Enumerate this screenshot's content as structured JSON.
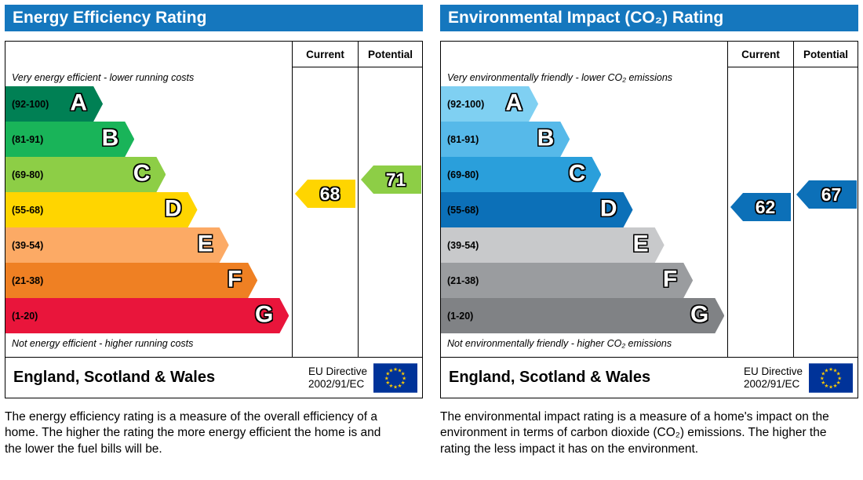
{
  "theme": {
    "header_color": "#1577be",
    "flag_bg": "#003399",
    "flag_star": "#ffcc00"
  },
  "panels": [
    {
      "title": "Energy Efficiency Rating",
      "col_current": "Current",
      "col_potential": "Potential",
      "top_note": "Very energy efficient - lower running costs",
      "bottom_note": "Not energy efficient - higher running costs",
      "bands": [
        {
          "letter": "A",
          "range": "(92-100)",
          "color": "#008054",
          "width_pct": 34
        },
        {
          "letter": "B",
          "range": "(81-91)",
          "color": "#19b459",
          "width_pct": 45
        },
        {
          "letter": "C",
          "range": "(69-80)",
          "color": "#8dce46",
          "width_pct": 56
        },
        {
          "letter": "D",
          "range": "(55-68)",
          "color": "#ffd500",
          "width_pct": 67
        },
        {
          "letter": "E",
          "range": "(39-54)",
          "color": "#fcaa65",
          "width_pct": 78
        },
        {
          "letter": "F",
          "range": "(21-38)",
          "color": "#ef8023",
          "width_pct": 88
        },
        {
          "letter": "G",
          "range": "(1-20)",
          "color": "#e9153b",
          "width_pct": 99
        }
      ],
      "current": {
        "value": 68,
        "color": "#ffd500"
      },
      "potential": {
        "value": 71,
        "color": "#8dce46"
      },
      "region": "England, Scotland & Wales",
      "directive_line1": "EU Directive",
      "directive_line2": "2002/91/EC",
      "description": "The energy efficiency rating is a measure of the overall efficiency of a home. The higher the rating the more energy efficient the home is and the lower the fuel bills will be."
    },
    {
      "title": "Environmental Impact (CO₂) Rating",
      "col_current": "Current",
      "col_potential": "Potential",
      "top_note": "Very environmentally friendly - lower CO₂ emissions",
      "bottom_note": "Not environmentally friendly - higher CO₂ emissions",
      "bands": [
        {
          "letter": "A",
          "range": "(92-100)",
          "color": "#7fd0f2",
          "width_pct": 34
        },
        {
          "letter": "B",
          "range": "(81-91)",
          "color": "#56b9e9",
          "width_pct": 45
        },
        {
          "letter": "C",
          "range": "(69-80)",
          "color": "#2a9fdb",
          "width_pct": 56
        },
        {
          "letter": "D",
          "range": "(55-68)",
          "color": "#0c70b8",
          "width_pct": 67
        },
        {
          "letter": "E",
          "range": "(39-54)",
          "color": "#c8c9cb",
          "width_pct": 78
        },
        {
          "letter": "F",
          "range": "(21-38)",
          "color": "#9a9c9f",
          "width_pct": 88
        },
        {
          "letter": "G",
          "range": "(1-20)",
          "color": "#808285",
          "width_pct": 99
        }
      ],
      "current": {
        "value": 62,
        "color": "#0c70b8"
      },
      "potential": {
        "value": 67,
        "color": "#0c70b8"
      },
      "region": "England, Scotland & Wales",
      "directive_line1": "EU Directive",
      "directive_line2": "2002/91/EC",
      "description": "The environmental impact rating is a measure of a home's impact on the environment in terms of carbon dioxide (CO₂) emissions. The higher the rating the less impact it has on the environment."
    }
  ],
  "chart_data": [
    {
      "type": "bar",
      "title": "Energy Efficiency Rating",
      "categories": [
        "A",
        "B",
        "C",
        "D",
        "E",
        "F",
        "G"
      ],
      "band_ranges": [
        [
          92,
          100
        ],
        [
          81,
          91
        ],
        [
          69,
          80
        ],
        [
          55,
          68
        ],
        [
          39,
          54
        ],
        [
          21,
          38
        ],
        [
          1,
          20
        ]
      ],
      "band_colors": [
        "#008054",
        "#19b459",
        "#8dce46",
        "#ffd500",
        "#fcaa65",
        "#ef8023",
        "#e9153b"
      ],
      "current": 68,
      "potential": 71,
      "current_band": "D",
      "potential_band": "C",
      "scale": [
        1,
        100
      ],
      "columns": [
        "Current",
        "Potential"
      ],
      "annotations": [
        "Very energy efficient - lower running costs",
        "Not energy efficient - higher running costs"
      ]
    },
    {
      "type": "bar",
      "title": "Environmental Impact (CO₂) Rating",
      "categories": [
        "A",
        "B",
        "C",
        "D",
        "E",
        "F",
        "G"
      ],
      "band_ranges": [
        [
          92,
          100
        ],
        [
          81,
          91
        ],
        [
          69,
          80
        ],
        [
          55,
          68
        ],
        [
          39,
          54
        ],
        [
          21,
          38
        ],
        [
          1,
          20
        ]
      ],
      "band_colors": [
        "#7fd0f2",
        "#56b9e9",
        "#2a9fdb",
        "#0c70b8",
        "#c8c9cb",
        "#9a9c9f",
        "#808285"
      ],
      "current": 62,
      "potential": 67,
      "current_band": "D",
      "potential_band": "D",
      "scale": [
        1,
        100
      ],
      "columns": [
        "Current",
        "Potential"
      ],
      "annotations": [
        "Very environmentally friendly - lower CO₂ emissions",
        "Not environmentally friendly - higher CO₂ emissions"
      ]
    }
  ]
}
